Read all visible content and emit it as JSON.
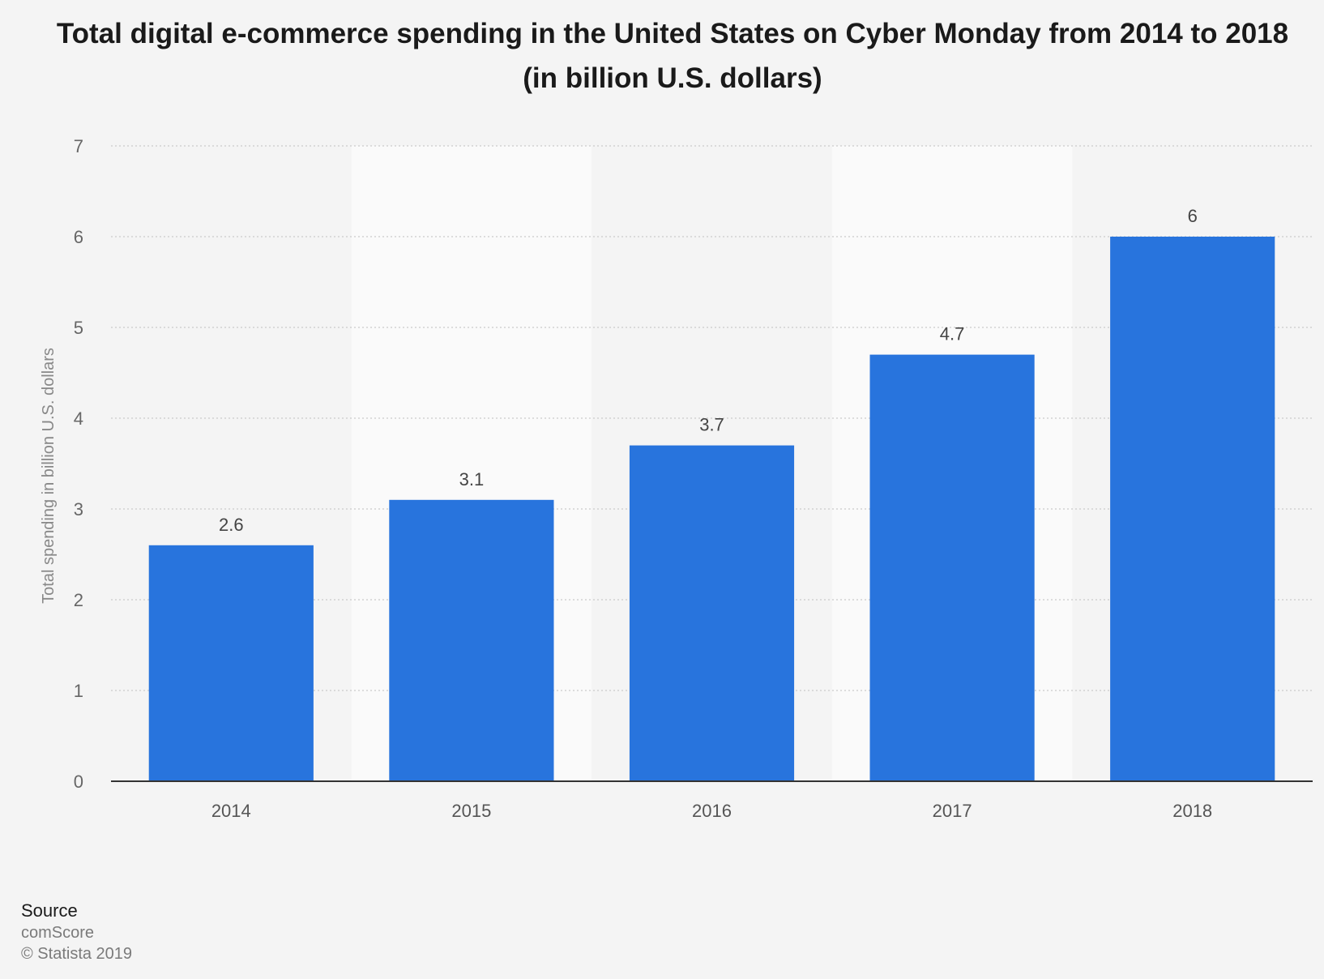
{
  "chart_data": {
    "type": "bar",
    "title": "Total digital e-commerce spending in the United States on Cyber Monday from 2014 to 2018 (in billion U.S. dollars)",
    "xlabel": "",
    "ylabel": "Total spending in billion U.S. dollars",
    "categories": [
      "2014",
      "2015",
      "2016",
      "2017",
      "2018"
    ],
    "values": [
      2.6,
      3.1,
      3.7,
      4.7,
      6
    ],
    "data_labels": [
      "2.6",
      "3.1",
      "3.7",
      "4.7",
      "6"
    ],
    "ylim": [
      0,
      7
    ],
    "yticks": [
      0,
      1,
      2,
      3,
      4,
      5,
      6,
      7
    ],
    "grid": true,
    "bar_color": "#2874dd",
    "legend": "none"
  },
  "source": {
    "heading": "Source",
    "name": "comScore",
    "copyright": "© Statista 2019"
  }
}
